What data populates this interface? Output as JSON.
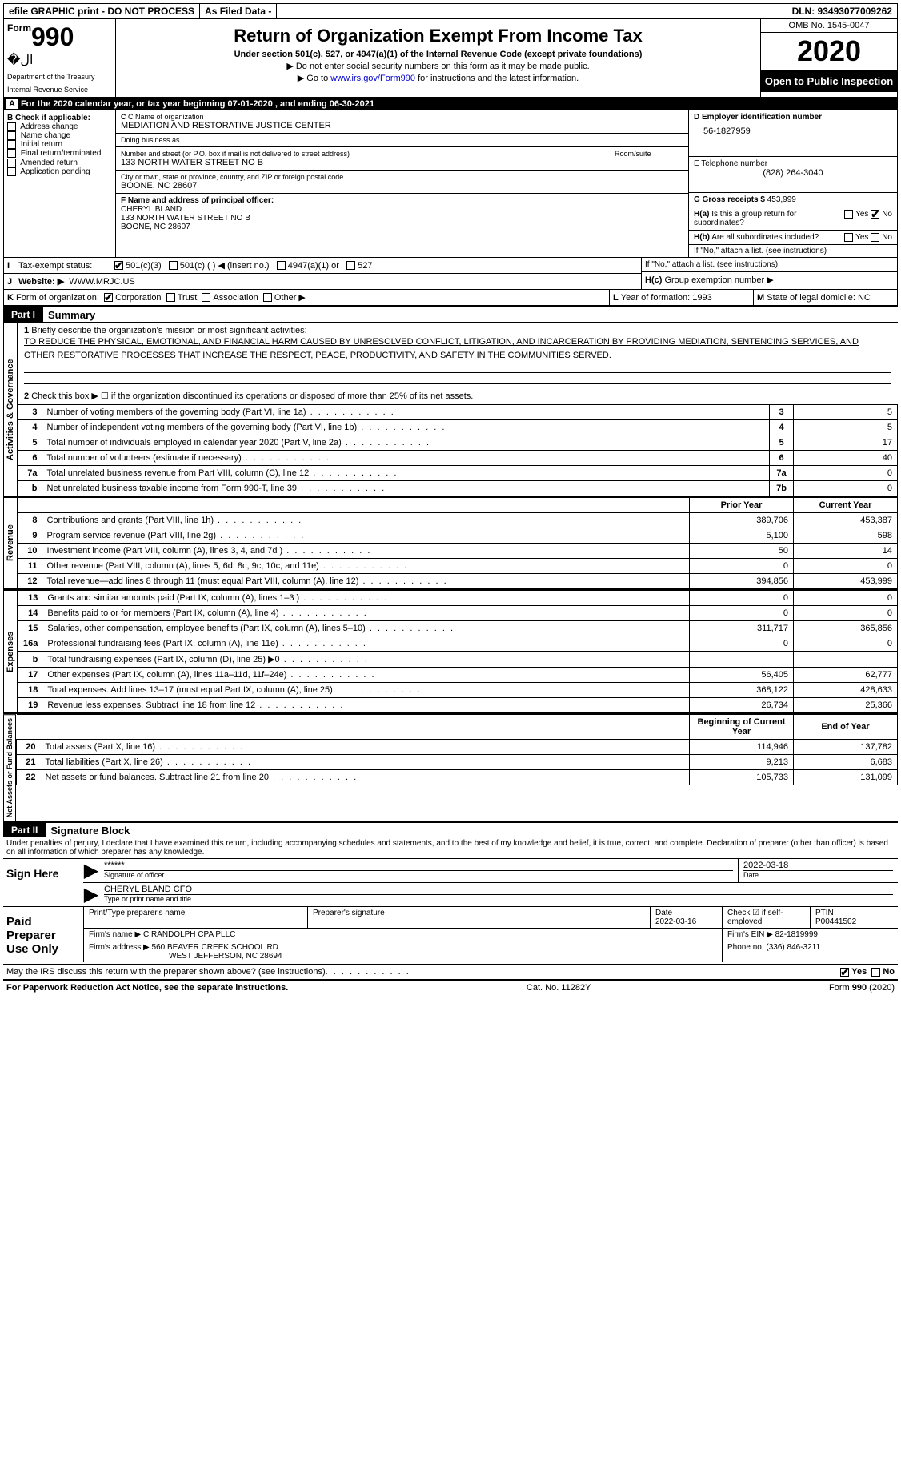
{
  "topbar": {
    "efile": "efile GRAPHIC print - DO NOT PROCESS",
    "asfiled": "As Filed Data -",
    "dln": "DLN: 93493077009262"
  },
  "header": {
    "form_word": "Form",
    "form_num": "990",
    "dept1": "Department of the Treasury",
    "dept2": "Internal Revenue Service",
    "title": "Return of Organization Exempt From Income Tax",
    "subtitle": "Under section 501(c), 527, or 4947(a)(1) of the Internal Revenue Code (except private foundations)",
    "note1": "▶ Do not enter social security numbers on this form as it may be made public.",
    "note2_pre": "▶ Go to ",
    "note2_link": "www.irs.gov/Form990",
    "note2_post": " for instructions and the latest information.",
    "omb": "OMB No. 1545-0047",
    "year": "2020",
    "open": "Open to Public Inspection"
  },
  "row_a": {
    "label": "A",
    "text": "For the 2020 calendar year, or tax year beginning 07-01-2020   , and ending 06-30-2021"
  },
  "col_b": {
    "heading": "B Check if applicable:",
    "items": [
      "Address change",
      "Name change",
      "Initial return",
      "Final return/terminated",
      "Amended return",
      "Application pending"
    ]
  },
  "col_c": {
    "name_label": "C Name of organization",
    "name": "MEDIATION AND RESTORATIVE JUSTICE CENTER",
    "dba_label": "Doing business as",
    "dba": "",
    "street_label": "Number and street (or P.O. box if mail is not delivered to street address)",
    "street": "133 NORTH WATER STREET NO B",
    "room_label": "Room/suite",
    "city_label": "City or town, state or province, country, and ZIP or foreign postal code",
    "city": "BOONE, NC  28607",
    "officer_label": "F  Name and address of principal officer:",
    "officer_name": "CHERYL BLAND",
    "officer_street": "133 NORTH WATER STREET NO B",
    "officer_city": "BOONE, NC  28607"
  },
  "col_d": {
    "ein_label": "D Employer identification number",
    "ein": "56-1827959",
    "phone_label": "E Telephone number",
    "phone": "(828) 264-3040",
    "gross_label": "G Gross receipts $",
    "gross": "453,999"
  },
  "h": {
    "ha_label": "H(a)",
    "ha_text": "Is this a group return for subordinates?",
    "hb_label": "H(b)",
    "hb_text": "Are all subordinates included?",
    "hb_note": "If \"No,\" attach a list. (see instructions)",
    "hc_label": "H(c)",
    "hc_text": "Group exemption number ▶",
    "yes": "Yes",
    "no": "No"
  },
  "status": {
    "i_label": "I",
    "i_text": "Tax-exempt status:",
    "opt1": "501(c)(3)",
    "opt2": "501(c) (   ) ◀ (insert no.)",
    "opt3": "4947(a)(1) or",
    "opt4": "527",
    "j_label": "J",
    "j_text": "Website: ▶",
    "website": "WWW.MRJC.US",
    "k_label": "K",
    "k_text": "Form of organization:",
    "corp": "Corporation",
    "trust": "Trust",
    "assoc": "Association",
    "other": "Other ▶",
    "l_label": "L",
    "l_text": "Year of formation: 1993",
    "m_label": "M",
    "m_text": "State of legal domicile: NC"
  },
  "part1": {
    "label": "Part I",
    "title": "Summary",
    "q1_num": "1",
    "q1": "Briefly describe the organization's mission or most significant activities:",
    "mission": "TO REDUCE THE PHYSICAL, EMOTIONAL, AND FINANCIAL HARM CAUSED BY UNRESOLVED CONFLICT, LITIGATION, AND INCARCERATION BY PROVIDING MEDIATION, SENTENCING SERVICES, AND OTHER RESTORATIVE PROCESSES THAT INCREASE THE RESPECT, PEACE, PRODUCTIVITY, AND SAFETY IN THE COMMUNITIES SERVED.",
    "q2_num": "2",
    "q2": "Check this box ▶ ☐ if the organization discontinued its operations or disposed of more than 25% of its net assets.",
    "sides": {
      "gov": "Activities & Governance",
      "rev": "Revenue",
      "exp": "Expenses",
      "net": "Net Assets or Fund Balances"
    },
    "col_prior": "Prior Year",
    "col_current": "Current Year",
    "col_begin": "Beginning of Current Year",
    "col_end": "End of Year",
    "lines_gov": [
      {
        "n": "3",
        "d": "Number of voting members of the governing body (Part VI, line 1a)",
        "box": "3",
        "v": "5"
      },
      {
        "n": "4",
        "d": "Number of independent voting members of the governing body (Part VI, line 1b)",
        "box": "4",
        "v": "5"
      },
      {
        "n": "5",
        "d": "Total number of individuals employed in calendar year 2020 (Part V, line 2a)",
        "box": "5",
        "v": "17"
      },
      {
        "n": "6",
        "d": "Total number of volunteers (estimate if necessary)",
        "box": "6",
        "v": "40"
      },
      {
        "n": "7a",
        "d": "Total unrelated business revenue from Part VIII, column (C), line 12",
        "box": "7a",
        "v": "0"
      },
      {
        "n": "b",
        "d": "Net unrelated business taxable income from Form 990-T, line 39",
        "box": "7b",
        "v": "0"
      }
    ],
    "lines_rev": [
      {
        "n": "8",
        "d": "Contributions and grants (Part VIII, line 1h)",
        "p": "389,706",
        "c": "453,387"
      },
      {
        "n": "9",
        "d": "Program service revenue (Part VIII, line 2g)",
        "p": "5,100",
        "c": "598"
      },
      {
        "n": "10",
        "d": "Investment income (Part VIII, column (A), lines 3, 4, and 7d )",
        "p": "50",
        "c": "14"
      },
      {
        "n": "11",
        "d": "Other revenue (Part VIII, column (A), lines 5, 6d, 8c, 9c, 10c, and 11e)",
        "p": "0",
        "c": "0"
      },
      {
        "n": "12",
        "d": "Total revenue—add lines 8 through 11 (must equal Part VIII, column (A), line 12)",
        "p": "394,856",
        "c": "453,999"
      }
    ],
    "lines_exp": [
      {
        "n": "13",
        "d": "Grants and similar amounts paid (Part IX, column (A), lines 1–3 )",
        "p": "0",
        "c": "0"
      },
      {
        "n": "14",
        "d": "Benefits paid to or for members (Part IX, column (A), line 4)",
        "p": "0",
        "c": "0"
      },
      {
        "n": "15",
        "d": "Salaries, other compensation, employee benefits (Part IX, column (A), lines 5–10)",
        "p": "311,717",
        "c": "365,856"
      },
      {
        "n": "16a",
        "d": "Professional fundraising fees (Part IX, column (A), line 11e)",
        "p": "0",
        "c": "0"
      },
      {
        "n": "b",
        "d": "Total fundraising expenses (Part IX, column (D), line 25) ▶0",
        "p": "",
        "c": ""
      },
      {
        "n": "17",
        "d": "Other expenses (Part IX, column (A), lines 11a–11d, 11f–24e)",
        "p": "56,405",
        "c": "62,777"
      },
      {
        "n": "18",
        "d": "Total expenses. Add lines 13–17 (must equal Part IX, column (A), line 25)",
        "p": "368,122",
        "c": "428,633"
      },
      {
        "n": "19",
        "d": "Revenue less expenses. Subtract line 18 from line 12",
        "p": "26,734",
        "c": "25,366"
      }
    ],
    "lines_net": [
      {
        "n": "20",
        "d": "Total assets (Part X, line 16)",
        "p": "114,946",
        "c": "137,782"
      },
      {
        "n": "21",
        "d": "Total liabilities (Part X, line 26)",
        "p": "9,213",
        "c": "6,683"
      },
      {
        "n": "22",
        "d": "Net assets or fund balances. Subtract line 21 from line 20",
        "p": "105,733",
        "c": "131,099"
      }
    ]
  },
  "part2": {
    "label": "Part II",
    "title": "Signature Block",
    "declaration": "Under penalties of perjury, I declare that I have examined this return, including accompanying schedules and statements, and to the best of my knowledge and belief, it is true, correct, and complete. Declaration of preparer (other than officer) is based on all information of which preparer has any knowledge.",
    "sign_here": "Sign Here",
    "stars": "******",
    "sig_officer": "Signature of officer",
    "sig_date": "2022-03-18",
    "date_label": "Date",
    "officer_printed": "CHERYL BLAND  CFO",
    "type_label": "Type or print name and title",
    "paid": "Paid Preparer Use Only",
    "prep_name_label": "Print/Type preparer's name",
    "prep_sig_label": "Preparer's signature",
    "prep_date_label": "Date",
    "prep_date": "2022-03-16",
    "check_label": "Check ☑ if self-employed",
    "ptin_label": "PTIN",
    "ptin": "P00441502",
    "firm_name_label": "Firm's name    ▶",
    "firm_name": "C RANDOLPH CPA PLLC",
    "firm_ein_label": "Firm's EIN ▶",
    "firm_ein": "82-1819999",
    "firm_addr_label": "Firm's address ▶",
    "firm_addr1": "560 BEAVER CREEK SCHOOL RD",
    "firm_addr2": "WEST JEFFERSON, NC  28694",
    "firm_phone_label": "Phone no.",
    "firm_phone": "(336) 846-3211",
    "discuss": "May the IRS discuss this return with the preparer shown above? (see instructions)"
  },
  "footer": {
    "left": "For Paperwork Reduction Act Notice, see the separate instructions.",
    "mid": "Cat. No. 11282Y",
    "right": "Form 990 (2020)"
  }
}
